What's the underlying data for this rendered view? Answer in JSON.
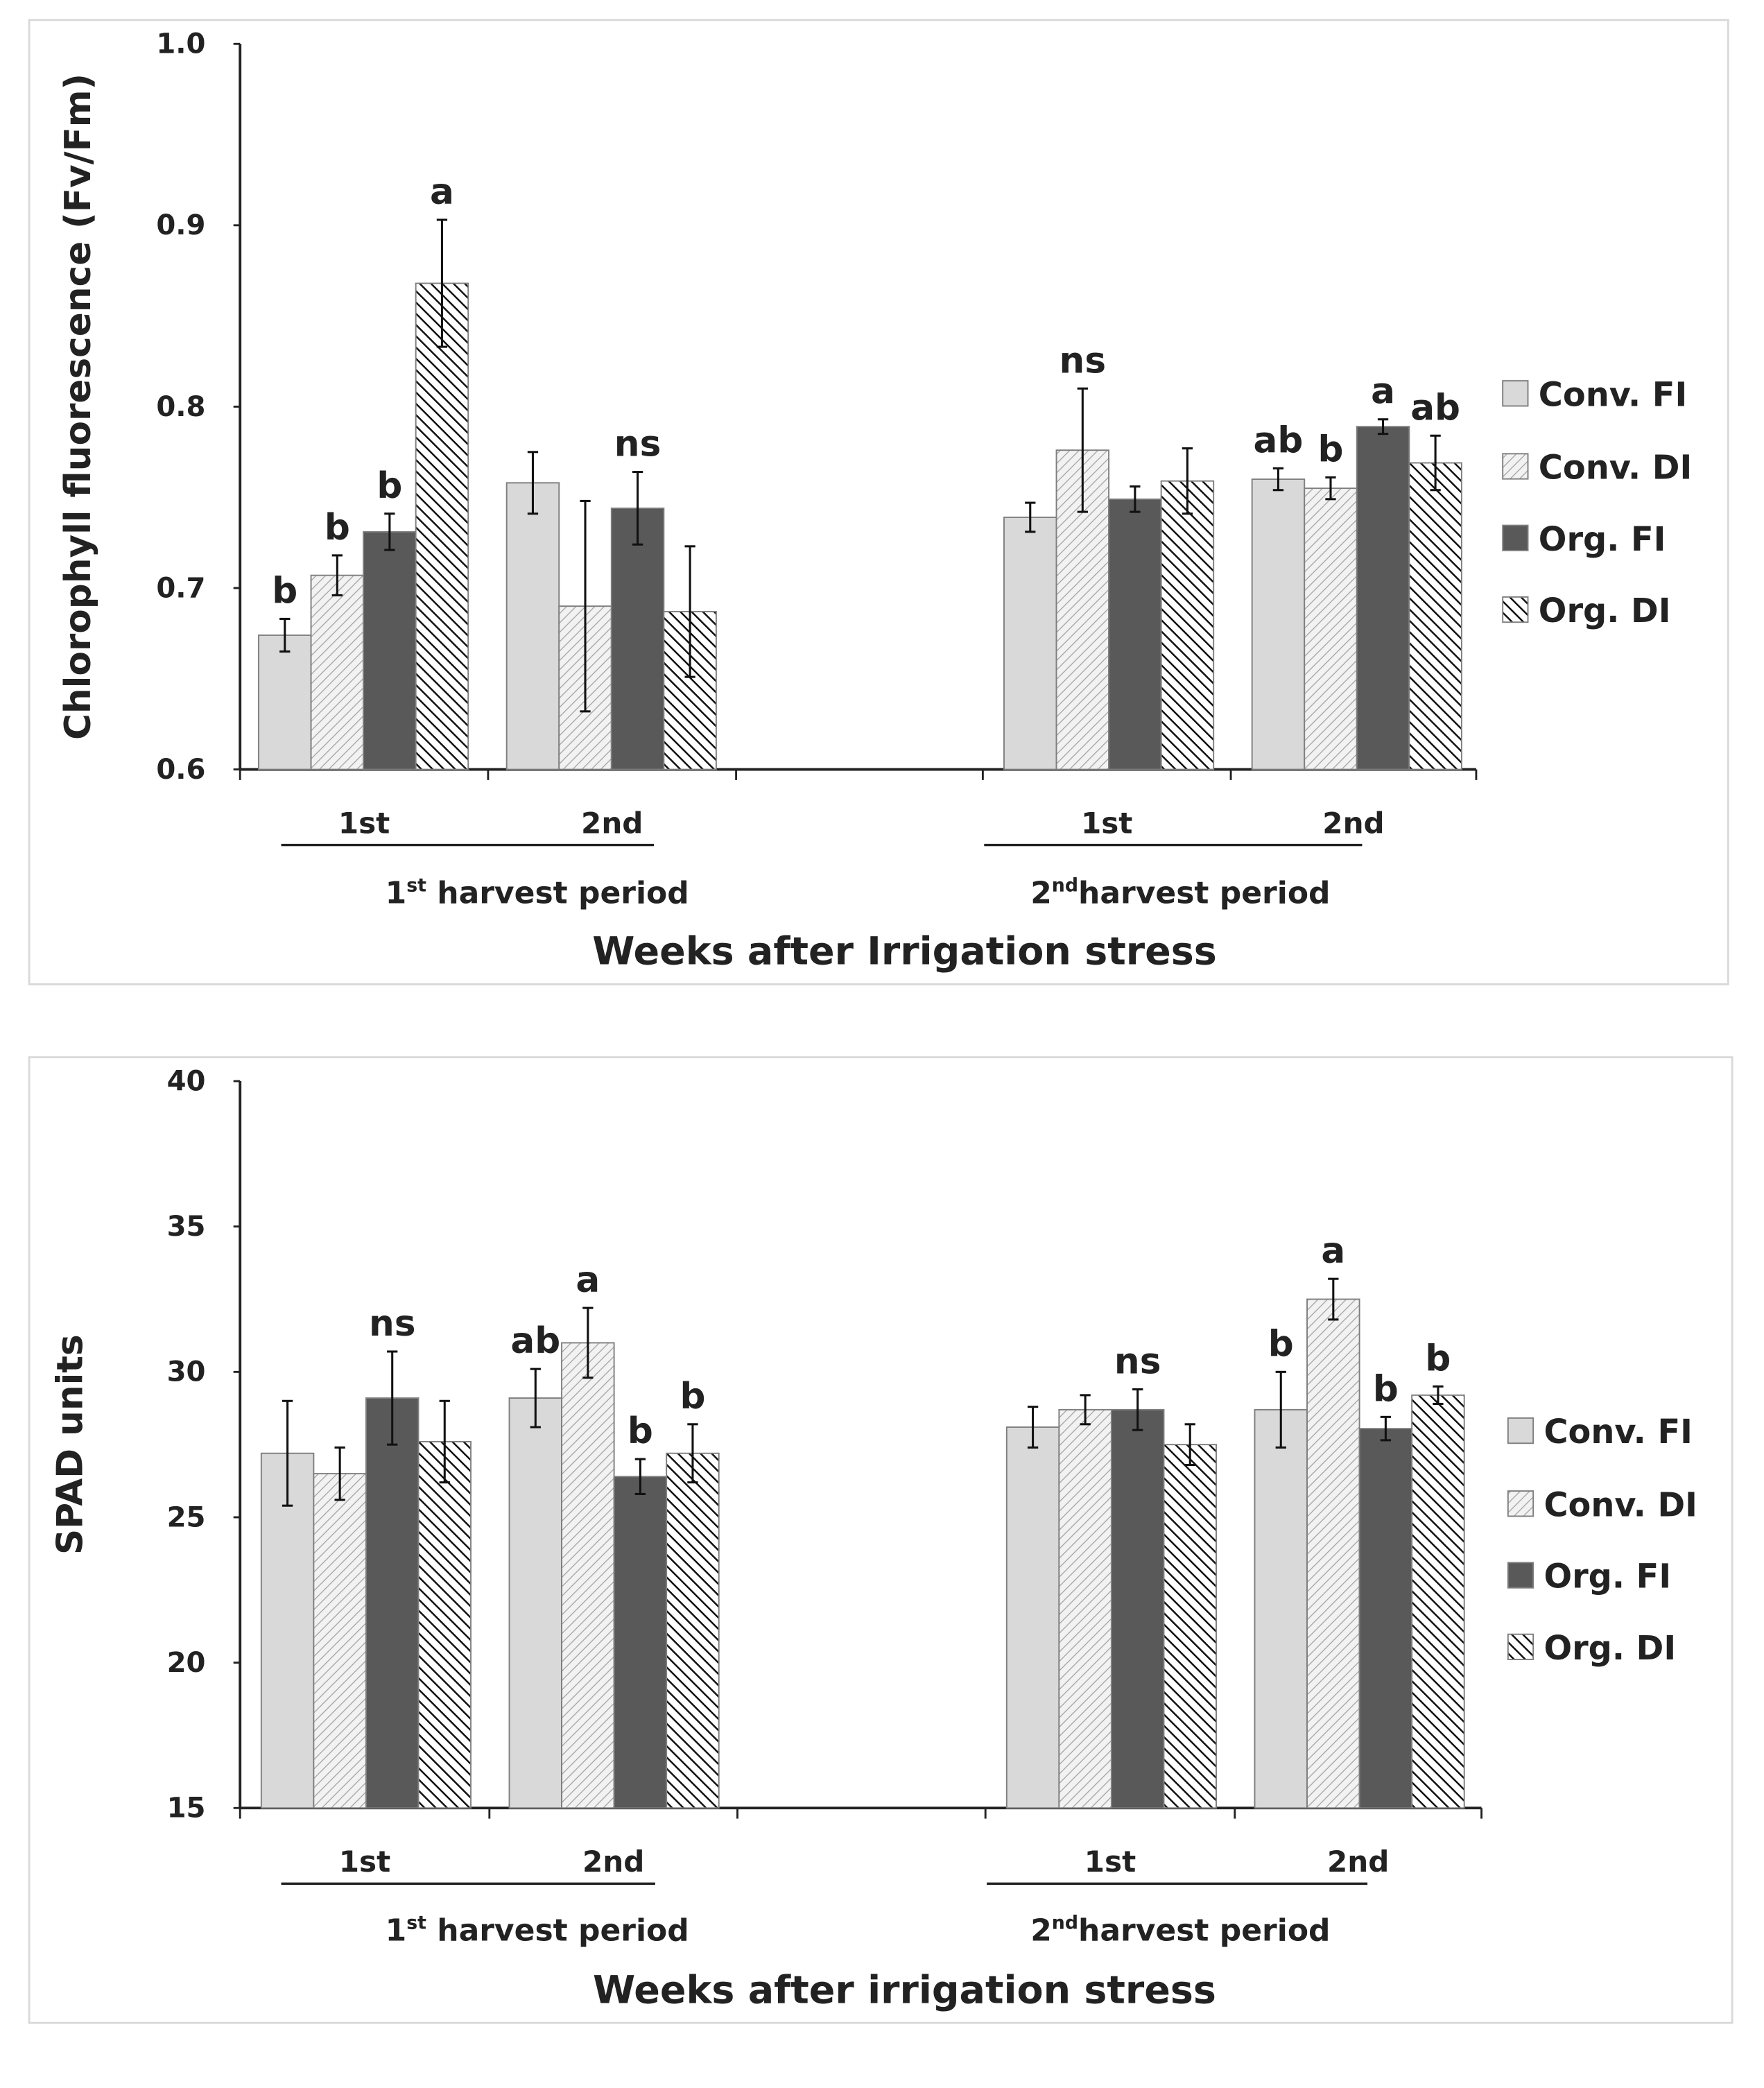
{
  "chart_data": [
    {
      "type": "bar",
      "ylabel": "Chlorophyll fluorescence (Fv/Fm)",
      "xlabel": "Weeks after Irrigation stress",
      "ylim": [
        0.6,
        1.0
      ],
      "yticks": [
        "0.6",
        "0.7",
        "0.8",
        "0.9",
        "1.0"
      ],
      "grid": false,
      "legend_position": "right",
      "series_names": [
        "Conv. FI",
        "Conv. DI",
        "Org. FI",
        "Org. DI"
      ],
      "harvest_labels": [
        {
          "main": "1",
          "sup": "st",
          "rest": " harvest period"
        },
        {
          "main": "2",
          "sup": "nd",
          "rest": "harvest period"
        }
      ],
      "groups": [
        {
          "label": "1st",
          "values": [
            0.674,
            0.707,
            0.731,
            0.868
          ],
          "errors": [
            0.009,
            0.011,
            0.01,
            0.035
          ],
          "letters": [
            "b",
            "b",
            "b",
            "a"
          ]
        },
        {
          "label": "2nd",
          "values": [
            0.758,
            0.69,
            0.744,
            0.687
          ],
          "errors": [
            0.017,
            0.058,
            0.02,
            0.036
          ],
          "letters": [
            "",
            "",
            "ns",
            ""
          ]
        },
        {
          "label": "1st",
          "values": [
            0.739,
            0.776,
            0.749,
            0.759
          ],
          "errors": [
            0.008,
            0.034,
            0.007,
            0.018
          ],
          "letters": [
            "",
            "ns",
            "",
            ""
          ]
        },
        {
          "label": "2nd",
          "values": [
            0.76,
            0.755,
            0.789,
            0.769
          ],
          "errors": [
            0.006,
            0.006,
            0.004,
            0.015
          ],
          "letters": [
            "ab",
            "b",
            "a",
            "ab"
          ]
        }
      ]
    },
    {
      "type": "bar",
      "ylabel": "SPAD units",
      "xlabel": "Weeks after irrigation stress",
      "ylim": [
        15,
        40
      ],
      "yticks": [
        "15",
        "20",
        "25",
        "30",
        "35",
        "40"
      ],
      "grid": false,
      "legend_position": "right",
      "series_names": [
        "Conv. FI",
        "Conv. DI",
        "Org. FI",
        "Org. DI"
      ],
      "harvest_labels": [
        {
          "main": "1",
          "sup": "st",
          "rest": " harvest period"
        },
        {
          "main": "2",
          "sup": "nd",
          "rest": "harvest period"
        }
      ],
      "groups": [
        {
          "label": "1st",
          "values": [
            27.2,
            26.5,
            29.1,
            27.6
          ],
          "errors": [
            1.8,
            0.9,
            1.6,
            1.4
          ],
          "letters": [
            "",
            "",
            "ns",
            ""
          ]
        },
        {
          "label": "2nd",
          "values": [
            29.1,
            31.0,
            26.4,
            27.2
          ],
          "errors": [
            1.0,
            1.2,
            0.6,
            1.0
          ],
          "letters": [
            "ab",
            "a",
            "b",
            "b"
          ]
        },
        {
          "label": "1st",
          "values": [
            28.1,
            28.7,
            28.7,
            27.5
          ],
          "errors": [
            0.7,
            0.5,
            0.7,
            0.7
          ],
          "letters": [
            "",
            "",
            "ns",
            ""
          ]
        },
        {
          "label": "2nd",
          "values": [
            28.7,
            32.5,
            28.05,
            29.2
          ],
          "errors": [
            1.3,
            0.7,
            0.4,
            0.3
          ],
          "letters": [
            "b",
            "a",
            "b",
            "b"
          ]
        }
      ]
    }
  ]
}
